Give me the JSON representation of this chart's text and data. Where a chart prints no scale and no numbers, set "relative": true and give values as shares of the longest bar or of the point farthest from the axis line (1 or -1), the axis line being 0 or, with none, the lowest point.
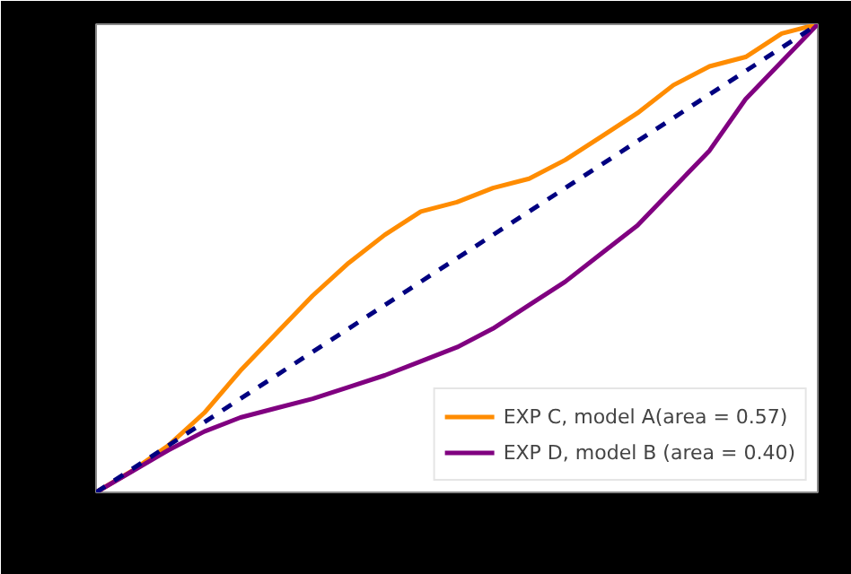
{
  "chart_data": {
    "type": "line",
    "relative": true,
    "legend": "bottom right",
    "grid": false,
    "categories": [
      null,
      null,
      null,
      null,
      null,
      null,
      null,
      null,
      null,
      null,
      null,
      null,
      null,
      null,
      null,
      null,
      null,
      null,
      null,
      null,
      null
    ],
    "series": [
      {
        "name": "EXP C, model A(area = 0.57)",
        "color": "#ff8c00",
        "line_style": "solid",
        "values": [
          0,
          0.046,
          0.1,
          0.17,
          0.26,
          0.34,
          0.42,
          0.49,
          0.55,
          0.6,
          0.62,
          0.65,
          0.67,
          0.71,
          0.76,
          0.81,
          0.87,
          0.91,
          0.93,
          0.98,
          1
        ]
      },
      {
        "name": "EXP D, model B (area = 0.40)",
        "color": "#800080",
        "line_style": "solid",
        "values": [
          0,
          0.045,
          0.09,
          0.13,
          0.16,
          0.18,
          0.2,
          0.225,
          0.25,
          0.28,
          0.31,
          0.35,
          0.4,
          0.45,
          0.51,
          0.57,
          0.65,
          0.73,
          0.84,
          0.92,
          1
        ]
      },
      {
        "color": "#000080",
        "line_style": "dashed",
        "values": [
          0,
          0.05,
          0.1,
          0.15,
          0.2,
          0.25,
          0.3,
          0.35,
          0.4,
          0.45,
          0.5,
          0.55,
          0.6,
          0.65,
          0.7,
          0.75,
          0.8,
          0.85,
          0.9,
          0.95,
          1
        ]
      }
    ]
  }
}
